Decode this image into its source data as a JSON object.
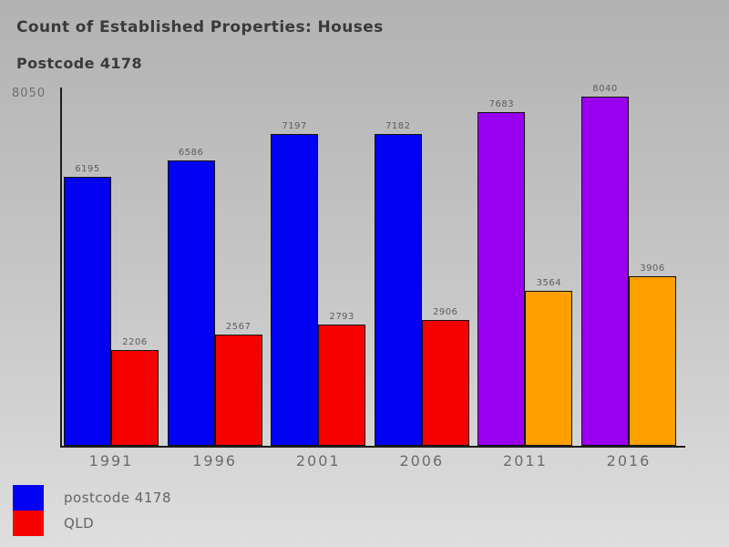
{
  "header": {
    "title": "Count of Established Properties: Houses",
    "subtitle": "Postcode 4178"
  },
  "y_axis": {
    "top_tick_label": "8050"
  },
  "chart_data": {
    "type": "bar",
    "title": "Count of Established Properties: Houses",
    "subtitle": "Postcode 4178",
    "categories": [
      "1991",
      "1996",
      "2001",
      "2006",
      "2011",
      "2016"
    ],
    "series": [
      {
        "name": "postcode 4178",
        "values": [
          6195,
          6586,
          7197,
          7182,
          7683,
          8040
        ],
        "colors": [
          "#0202f2",
          "#0202f2",
          "#0202f2",
          "#0202f2",
          "#9a00f0",
          "#9a00f0"
        ]
      },
      {
        "name": "QLD",
        "values": [
          2206,
          2567,
          2793,
          2906,
          3564,
          3906
        ],
        "colors": [
          "#f70000",
          "#f70000",
          "#f70000",
          "#f70000",
          "#ffa000",
          "#ffa000"
        ]
      }
    ],
    "ylim": [
      0,
      8050
    ],
    "xlabel": "",
    "ylabel": "",
    "grid": false,
    "legend_position": "bottom-left",
    "value_labels": true
  },
  "legend": {
    "items": [
      {
        "label": "postcode 4178",
        "color": "#0202f2"
      },
      {
        "label": "QLD",
        "color": "#f70000"
      }
    ]
  }
}
